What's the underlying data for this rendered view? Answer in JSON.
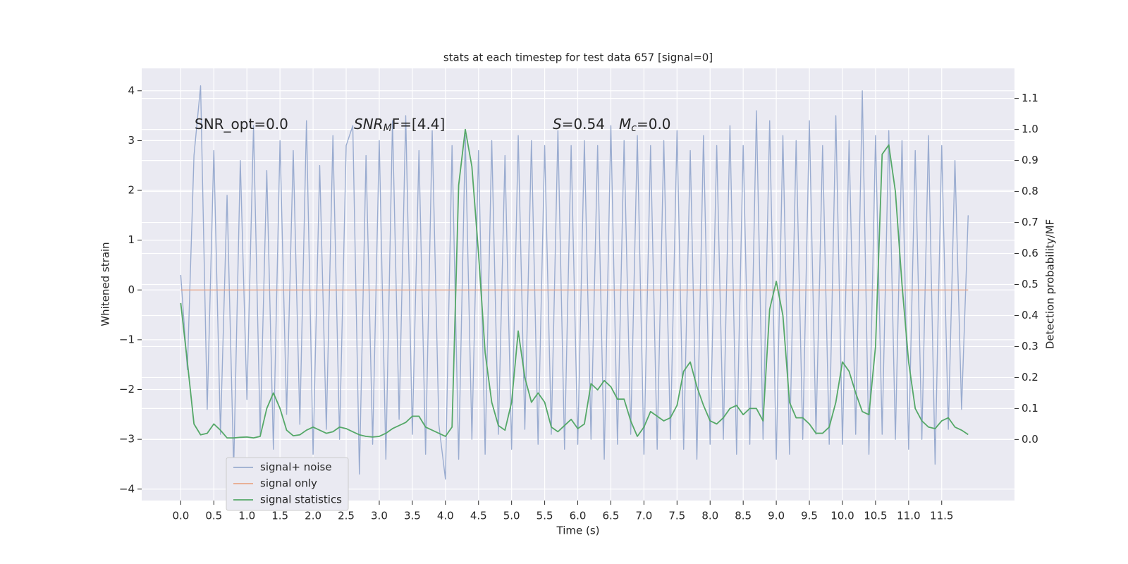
{
  "chart_data": {
    "type": "line",
    "title": "stats at each timestep for test data 657 [signal=0]",
    "xlabel": "Time (s)",
    "ylabel": "Whitened strain",
    "y2label": "Detection probability/MF",
    "annotations": [
      [
        "SNR_opt=0.0"
      ],
      [
        "SNR",
        "M",
        "F=[4.4]"
      ],
      [
        "S",
        "=0.54"
      ],
      [
        "M",
        "c",
        "=0.0"
      ]
    ],
    "xlim": [
      -0.59,
      12.6
    ],
    "ylim": [
      -4.23,
      4.45
    ],
    "y2lim": [
      -0.197,
      1.197
    ],
    "xticks": [
      {
        "value": 0,
        "label": "0.0"
      },
      0.5,
      {
        "value": 1,
        "label": "1.0"
      },
      1.5,
      {
        "value": 2,
        "label": "2.0"
      },
      2.5,
      {
        "value": 3,
        "label": "3.0"
      },
      3.5,
      {
        "value": 4,
        "label": "4.0"
      },
      4.5,
      {
        "value": 5,
        "label": "5.0"
      },
      5.5,
      {
        "value": 6,
        "label": "6.0"
      },
      6.5,
      {
        "value": 7,
        "label": "7.0"
      },
      7.5,
      {
        "value": 8,
        "label": "8.0"
      },
      8.5,
      {
        "value": 9,
        "label": "9.0"
      },
      9.5,
      {
        "value": 10,
        "label": "10.0"
      },
      10.5,
      {
        "value": 11,
        "label": "11.0"
      },
      11.5
    ],
    "yticks": [
      {
        "value": -4,
        "label": "−4"
      },
      {
        "value": -3,
        "label": "−3"
      },
      {
        "value": -2,
        "label": "−2"
      },
      {
        "value": -1,
        "label": "−1"
      },
      0,
      1,
      2,
      3,
      4
    ],
    "y2ticks": [
      {
        "value": 0,
        "label": "0.0"
      },
      0.1,
      0.2,
      0.3,
      0.4,
      0.5,
      0.6,
      0.7,
      0.8,
      0.9,
      {
        "value": 1,
        "label": "1.0"
      },
      1.1
    ],
    "grid": true,
    "legend": "lower left",
    "x": [
      0.0,
      0.1,
      0.2,
      0.3,
      0.4,
      0.5,
      0.6,
      0.7,
      0.8,
      0.9,
      1.0,
      1.1,
      1.2,
      1.3,
      1.4,
      1.5,
      1.6,
      1.7,
      1.8,
      1.9,
      2.0,
      2.1,
      2.2,
      2.3,
      2.4,
      2.5,
      2.6,
      2.7,
      2.8,
      2.9,
      3.0,
      3.1,
      3.2,
      3.3,
      3.4,
      3.5,
      3.6,
      3.7,
      3.8,
      3.9,
      4.0,
      4.1,
      4.2,
      4.3,
      4.4,
      4.5,
      4.6,
      4.7,
      4.8,
      4.9,
      5.0,
      5.1,
      5.2,
      5.3,
      5.4,
      5.5,
      5.6,
      5.7,
      5.8,
      5.9,
      6.0,
      6.1,
      6.2,
      6.3,
      6.4,
      6.5,
      6.6,
      6.7,
      6.8,
      6.9,
      7.0,
      7.1,
      7.2,
      7.3,
      7.4,
      7.5,
      7.6,
      7.7,
      7.8,
      7.9,
      8.0,
      8.1,
      8.2,
      8.3,
      8.4,
      8.5,
      8.6,
      8.7,
      8.8,
      8.9,
      9.0,
      9.1,
      9.2,
      9.3,
      9.4,
      9.5,
      9.6,
      9.7,
      9.8,
      9.9,
      10.0,
      10.1,
      10.2,
      10.3,
      10.4,
      10.5,
      10.6,
      10.7,
      10.8,
      10.9,
      11.0,
      11.1,
      11.2,
      11.3,
      11.4,
      11.5,
      11.6,
      11.7,
      11.8,
      11.9
    ],
    "series": [
      {
        "name": "signal+ noise",
        "color": "#9aacd0",
        "values": [
          0.3,
          -1.6,
          2.7,
          4.1,
          -2.4,
          2.8,
          -2.9,
          1.9,
          -3.6,
          2.6,
          -2.2,
          3.3,
          -2.9,
          2.4,
          -3.2,
          3.0,
          -2.5,
          2.8,
          -2.7,
          3.4,
          -3.3,
          2.5,
          -2.8,
          3.1,
          -3.0,
          2.9,
          3.3,
          -3.7,
          2.7,
          -3.1,
          3.0,
          -3.4,
          3.4,
          -2.6,
          3.5,
          -2.9,
          2.8,
          -3.3,
          3.2,
          -2.7,
          -3.8,
          2.9,
          -3.4,
          3.1,
          -3.0,
          2.8,
          -3.3,
          3.0,
          -2.9,
          2.7,
          -3.2,
          3.1,
          -2.8,
          3.0,
          -3.1,
          2.9,
          -2.9,
          3.2,
          -3.2,
          2.9,
          -3.1,
          3.0,
          -3.0,
          2.9,
          -3.4,
          3.3,
          -3.1,
          3.0,
          -2.9,
          3.1,
          -3.3,
          2.9,
          -3.2,
          3.0,
          -3.0,
          3.2,
          -3.2,
          2.8,
          -3.4,
          3.1,
          -3.1,
          2.9,
          -3.0,
          3.3,
          -3.3,
          2.9,
          -3.1,
          3.6,
          -3.0,
          3.4,
          -3.4,
          3.1,
          -3.3,
          3.0,
          -3.0,
          3.4,
          -2.9,
          2.9,
          -3.1,
          3.5,
          -3.1,
          3.0,
          -2.9,
          4.0,
          -3.3,
          3.1,
          -2.9,
          3.2,
          -3.0,
          3.0,
          -3.2,
          2.8,
          -3.0,
          3.1,
          -3.5,
          2.9,
          -2.8,
          2.6,
          -2.4,
          1.5
        ]
      },
      {
        "name": "signal only",
        "color": "#e8a88a",
        "values": [
          0,
          0,
          0,
          0,
          0,
          0,
          0,
          0,
          0,
          0,
          0,
          0,
          0,
          0,
          0,
          0,
          0,
          0,
          0,
          0,
          0,
          0,
          0,
          0,
          0,
          0,
          0,
          0,
          0,
          0,
          0,
          0,
          0,
          0,
          0,
          0,
          0,
          0,
          0,
          0,
          0,
          0,
          0,
          0,
          0,
          0,
          0,
          0,
          0,
          0,
          0,
          0,
          0,
          0,
          0,
          0,
          0,
          0,
          0,
          0,
          0,
          0,
          0,
          0,
          0,
          0,
          0,
          0,
          0,
          0,
          0,
          0,
          0,
          0,
          0,
          0,
          0,
          0,
          0,
          0,
          0,
          0,
          0,
          0,
          0,
          0,
          0,
          0,
          0,
          0,
          0,
          0,
          0,
          0,
          0,
          0,
          0,
          0,
          0,
          0,
          0,
          0,
          0,
          0,
          0,
          0,
          0,
          0,
          0,
          0,
          0,
          0,
          0,
          0,
          0,
          0,
          0,
          0,
          0,
          0
        ]
      },
      {
        "name": "signal statistics",
        "color": "#55a868",
        "axis": "y2",
        "values": [
          0.44,
          0.25,
          0.05,
          0.015,
          0.02,
          0.05,
          0.03,
          0.005,
          0.005,
          0.007,
          0.008,
          0.005,
          0.01,
          0.1,
          0.15,
          0.1,
          0.03,
          0.012,
          0.015,
          0.03,
          0.04,
          0.03,
          0.02,
          0.025,
          0.04,
          0.035,
          0.025,
          0.015,
          0.01,
          0.008,
          0.01,
          0.02,
          0.035,
          0.045,
          0.055,
          0.075,
          0.075,
          0.04,
          0.03,
          0.02,
          0.01,
          0.04,
          0.82,
          1.0,
          0.88,
          0.6,
          0.28,
          0.12,
          0.045,
          0.03,
          0.12,
          0.35,
          0.2,
          0.12,
          0.15,
          0.12,
          0.04,
          0.025,
          0.045,
          0.065,
          0.035,
          0.05,
          0.18,
          0.16,
          0.19,
          0.17,
          0.13,
          0.13,
          0.06,
          0.01,
          0.04,
          0.09,
          0.075,
          0.06,
          0.07,
          0.11,
          0.22,
          0.25,
          0.17,
          0.11,
          0.06,
          0.05,
          0.07,
          0.1,
          0.11,
          0.08,
          0.1,
          0.1,
          0.06,
          0.42,
          0.51,
          0.4,
          0.12,
          0.07,
          0.07,
          0.05,
          0.02,
          0.02,
          0.04,
          0.12,
          0.25,
          0.22,
          0.15,
          0.09,
          0.08,
          0.3,
          0.92,
          0.95,
          0.8,
          0.5,
          0.25,
          0.1,
          0.06,
          0.04,
          0.035,
          0.06,
          0.07,
          0.04,
          0.03,
          0.016
        ]
      }
    ]
  }
}
